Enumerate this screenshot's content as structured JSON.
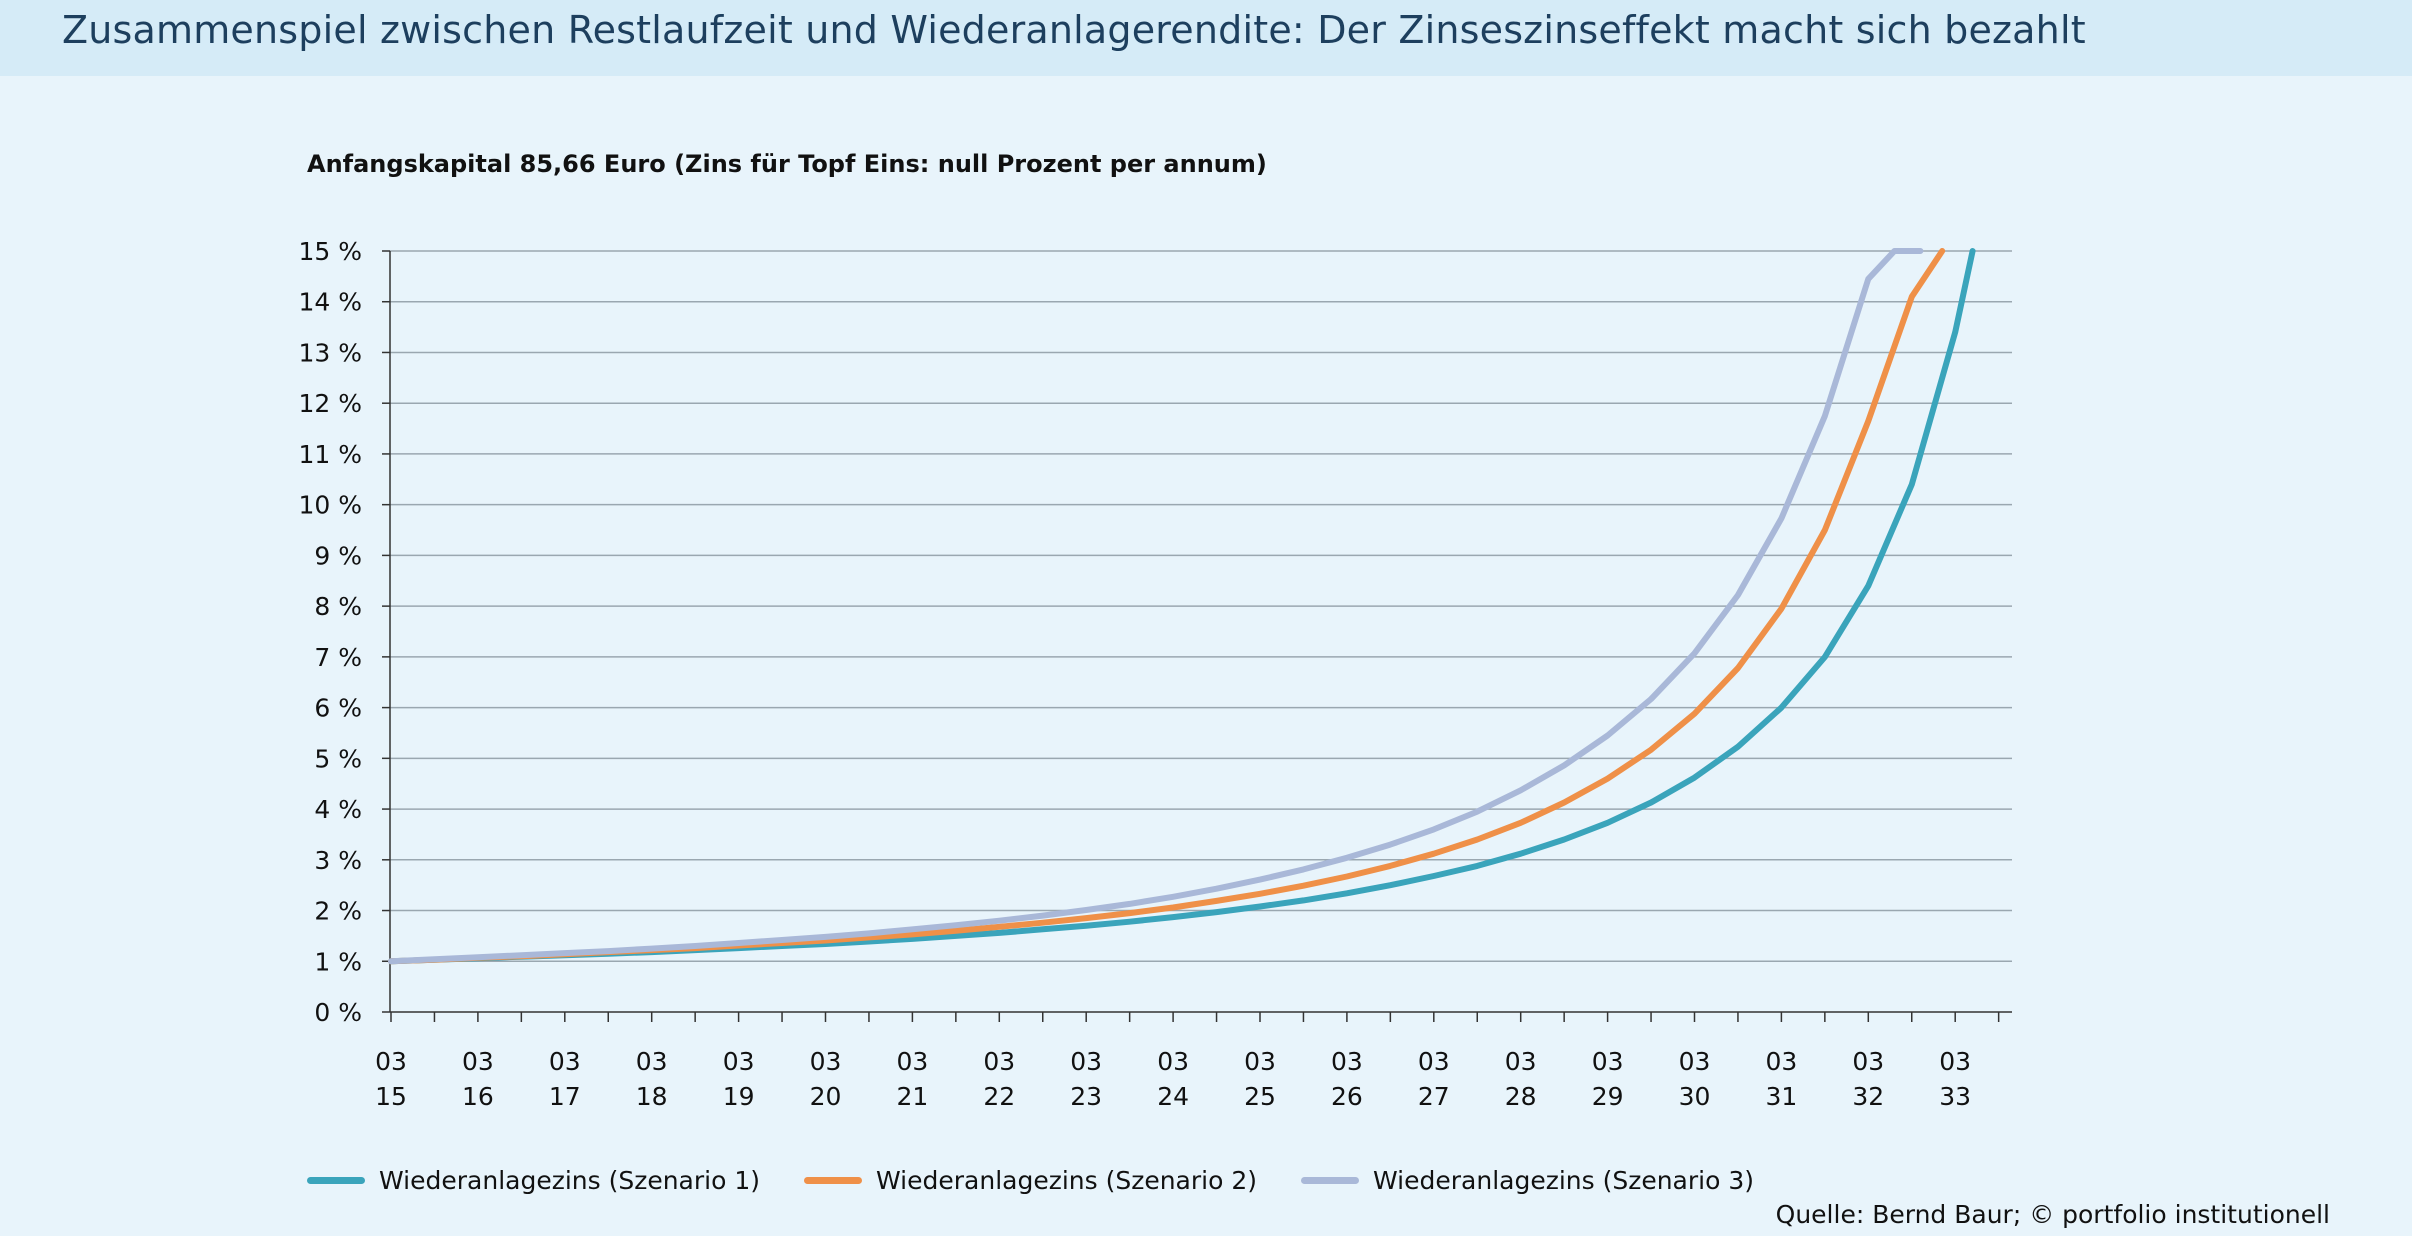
{
  "header": {
    "title": "Zusammenspiel zwischen Restlaufzeit und Wiederanlagerendite: Der Zinseszinseffekt macht sich bezahlt"
  },
  "source": "Quelle: Bernd Baur; © portfolio institutionell",
  "chart_data": {
    "type": "line",
    "title": "Anfangskapital 85,66 Euro (Zins für Topf Eins: null Prozent per annum)",
    "xlabel": "",
    "ylabel": "",
    "x_ticks": [
      {
        "top": "03",
        "bottom": "15"
      },
      {
        "top": "03",
        "bottom": "16"
      },
      {
        "top": "03",
        "bottom": "17"
      },
      {
        "top": "03",
        "bottom": "18"
      },
      {
        "top": "03",
        "bottom": "19"
      },
      {
        "top": "03",
        "bottom": "20"
      },
      {
        "top": "03",
        "bottom": "21"
      },
      {
        "top": "03",
        "bottom": "22"
      },
      {
        "top": "03",
        "bottom": "23"
      },
      {
        "top": "03",
        "bottom": "24"
      },
      {
        "top": "03",
        "bottom": "25"
      },
      {
        "top": "03",
        "bottom": "26"
      },
      {
        "top": "03",
        "bottom": "27"
      },
      {
        "top": "03",
        "bottom": "28"
      },
      {
        "top": "03",
        "bottom": "29"
      },
      {
        "top": "03",
        "bottom": "30"
      },
      {
        "top": "03",
        "bottom": "31"
      },
      {
        "top": "03",
        "bottom": "32"
      },
      {
        "top": "03",
        "bottom": "33"
      }
    ],
    "xlim": [
      2015,
      2033.6
    ],
    "ylim": [
      0,
      15
    ],
    "y_ticks": [
      "0 %",
      "1 %",
      "2 %",
      "3 %",
      "4 %",
      "5 %",
      "6 %",
      "7 %",
      "8 %",
      "9 %",
      "10 %",
      "11 %",
      "12 %",
      "13 %",
      "14 %",
      "15 %"
    ],
    "grid": true,
    "legend_position": "bottom",
    "series": [
      {
        "name": "Wiederanlagezins (Szenario 1)",
        "color": "#3aa4bb",
        "x": [
          2015,
          2015.5,
          2016,
          2016.5,
          2017,
          2017.5,
          2018,
          2018.5,
          2019,
          2019.5,
          2020,
          2020.5,
          2021,
          2021.5,
          2022,
          2022.5,
          2023,
          2023.5,
          2024,
          2024.5,
          2025,
          2025.5,
          2026,
          2026.5,
          2027,
          2027.5,
          2028,
          2028.5,
          2029,
          2029.5,
          2030,
          2030.5,
          2031,
          2031.5,
          2032,
          2032.5,
          2033,
          2033.2
        ],
        "y": [
          1.0,
          1.03,
          1.06,
          1.09,
          1.12,
          1.15,
          1.18,
          1.22,
          1.26,
          1.3,
          1.34,
          1.39,
          1.44,
          1.5,
          1.56,
          1.63,
          1.7,
          1.78,
          1.87,
          1.97,
          2.08,
          2.2,
          2.34,
          2.5,
          2.68,
          2.88,
          3.12,
          3.4,
          3.73,
          4.13,
          4.62,
          5.23,
          6.0,
          7.0,
          8.4,
          10.4,
          13.4,
          15.0
        ]
      },
      {
        "name": "Wiederanlagezins (Szenario 2)",
        "color": "#ef9048",
        "x": [
          2015,
          2015.5,
          2016,
          2016.5,
          2017,
          2017.5,
          2018,
          2018.5,
          2019,
          2019.5,
          2020,
          2020.5,
          2021,
          2021.5,
          2022,
          2022.5,
          2023,
          2023.5,
          2024,
          2024.5,
          2025,
          2025.5,
          2026,
          2026.5,
          2027,
          2027.5,
          2028,
          2028.5,
          2029,
          2029.5,
          2030,
          2030.5,
          2031,
          2031.5,
          2032,
          2032.5,
          2032.85
        ],
        "y": [
          1.0,
          1.03,
          1.07,
          1.1,
          1.14,
          1.18,
          1.22,
          1.26,
          1.31,
          1.36,
          1.41,
          1.47,
          1.53,
          1.6,
          1.68,
          1.76,
          1.85,
          1.95,
          2.06,
          2.19,
          2.33,
          2.49,
          2.67,
          2.88,
          3.12,
          3.4,
          3.73,
          4.13,
          4.6,
          5.17,
          5.88,
          6.78,
          7.95,
          9.5,
          11.65,
          14.1,
          15.0
        ]
      },
      {
        "name": "Wiederanlagezins (Szenario 3)",
        "color": "#a9b8d8",
        "x": [
          2015,
          2015.5,
          2016,
          2016.5,
          2017,
          2017.5,
          2018,
          2018.5,
          2019,
          2019.5,
          2020,
          2020.5,
          2021,
          2021.5,
          2022,
          2022.5,
          2023,
          2023.5,
          2024,
          2024.5,
          2025,
          2025.5,
          2026,
          2026.5,
          2027,
          2027.5,
          2028,
          2028.5,
          2029,
          2029.5,
          2030,
          2030.5,
          2031,
          2031.5,
          2032,
          2032.3,
          2032.6
        ],
        "y": [
          1.0,
          1.04,
          1.08,
          1.12,
          1.16,
          1.2,
          1.25,
          1.3,
          1.36,
          1.42,
          1.48,
          1.55,
          1.63,
          1.71,
          1.8,
          1.9,
          2.01,
          2.13,
          2.27,
          2.43,
          2.61,
          2.81,
          3.04,
          3.3,
          3.6,
          3.95,
          4.37,
          4.86,
          5.45,
          6.17,
          7.07,
          8.22,
          9.73,
          11.75,
          14.45,
          15.0,
          15.0
        ]
      }
    ]
  }
}
